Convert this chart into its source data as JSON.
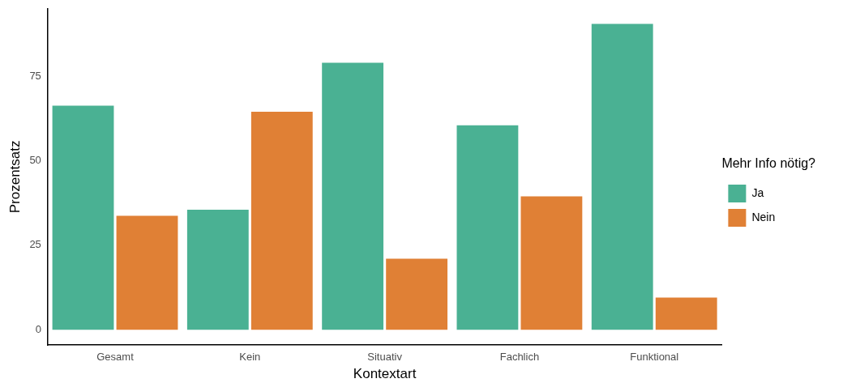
{
  "chart_data": {
    "type": "bar",
    "xlabel": "Kontextart",
    "ylabel": "Prozentsatz",
    "legend_title": "Mehr Info nötig?",
    "categories": [
      "Gesamt",
      "Kein",
      "Situativ",
      "Fachlich",
      "Funktional"
    ],
    "series": [
      {
        "name": "Ja",
        "color": "#4ab193",
        "values": [
          66.3,
          35.5,
          79,
          60.5,
          90.5
        ]
      },
      {
        "name": "Nein",
        "color": "#e08035",
        "values": [
          33.7,
          64.5,
          21,
          39.5,
          9.5
        ]
      }
    ],
    "ylim": [
      -4.5,
      95
    ],
    "yticks": [
      0,
      25,
      50,
      75
    ],
    "grid": false,
    "legend": "right"
  }
}
